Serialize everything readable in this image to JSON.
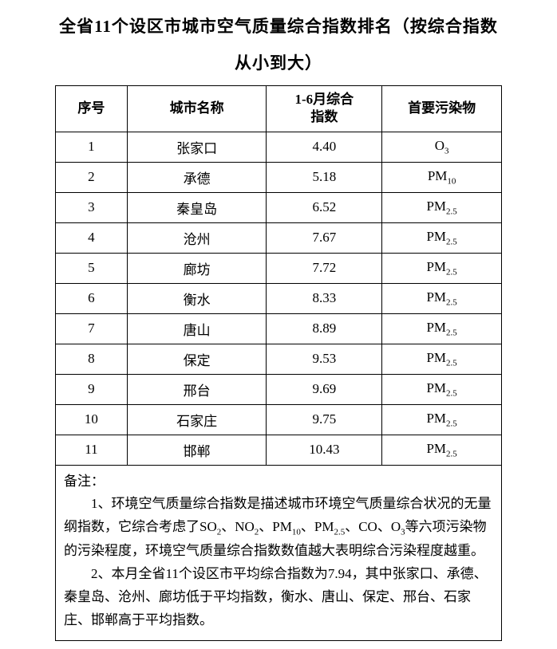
{
  "title_line1": "全省11个设区市城市空气质量综合指数排名（按综合指数",
  "title_line2": "从小到大）",
  "columns": {
    "c1": "序号",
    "c2": "城市名称",
    "c3_line1": "1-6月综合",
    "c3_line2": "指数",
    "c4": "首要污染物"
  },
  "rows": [
    {
      "rank": "1",
      "city": "张家口",
      "index": "4.40",
      "pollutant_base": "O",
      "pollutant_sub": "3"
    },
    {
      "rank": "2",
      "city": "承德",
      "index": "5.18",
      "pollutant_base": "PM",
      "pollutant_sub": "10"
    },
    {
      "rank": "3",
      "city": "秦皇岛",
      "index": "6.52",
      "pollutant_base": "PM",
      "pollutant_sub": "2.5"
    },
    {
      "rank": "4",
      "city": "沧州",
      "index": "7.67",
      "pollutant_base": "PM",
      "pollutant_sub": "2.5"
    },
    {
      "rank": "5",
      "city": "廊坊",
      "index": "7.72",
      "pollutant_base": "PM",
      "pollutant_sub": "2.5"
    },
    {
      "rank": "6",
      "city": "衡水",
      "index": "8.33",
      "pollutant_base": "PM",
      "pollutant_sub": "2.5"
    },
    {
      "rank": "7",
      "city": "唐山",
      "index": "8.89",
      "pollutant_base": "PM",
      "pollutant_sub": "2.5"
    },
    {
      "rank": "8",
      "city": "保定",
      "index": "9.53",
      "pollutant_base": "PM",
      "pollutant_sub": "2.5"
    },
    {
      "rank": "9",
      "city": "邢台",
      "index": "9.69",
      "pollutant_base": "PM",
      "pollutant_sub": "2.5"
    },
    {
      "rank": "10",
      "city": "石家庄",
      "index": "9.75",
      "pollutant_base": "PM",
      "pollutant_sub": "2.5"
    },
    {
      "rank": "11",
      "city": "邯郸",
      "index": "10.43",
      "pollutant_base": "PM",
      "pollutant_sub": "2.5"
    }
  ],
  "notes": {
    "header": "备注：",
    "p1_a": "1、环境空气质量综合指数是描述城市环境空气质量综合状况的无量纲指数，它综合考虑了SO",
    "p1_sub1": "2",
    "p1_b": "、NO",
    "p1_sub2": "2",
    "p1_c": "、PM",
    "p1_sub3": "10",
    "p1_d": "、PM",
    "p1_sub4": "2.5",
    "p1_e": "、CO、O",
    "p1_sub5": "3",
    "p1_f": "等六项污染物的污染程度，环境空气质量综合指数数值越大表明综合污染程度越重。",
    "p2": "2、本月全省11个设区市平均综合指数为7.94，其中张家口、承德、秦皇岛、沧州、廊坊低于平均指数，衡水、唐山、保定、邢台、石家庄、邯郸高于平均指数。"
  }
}
